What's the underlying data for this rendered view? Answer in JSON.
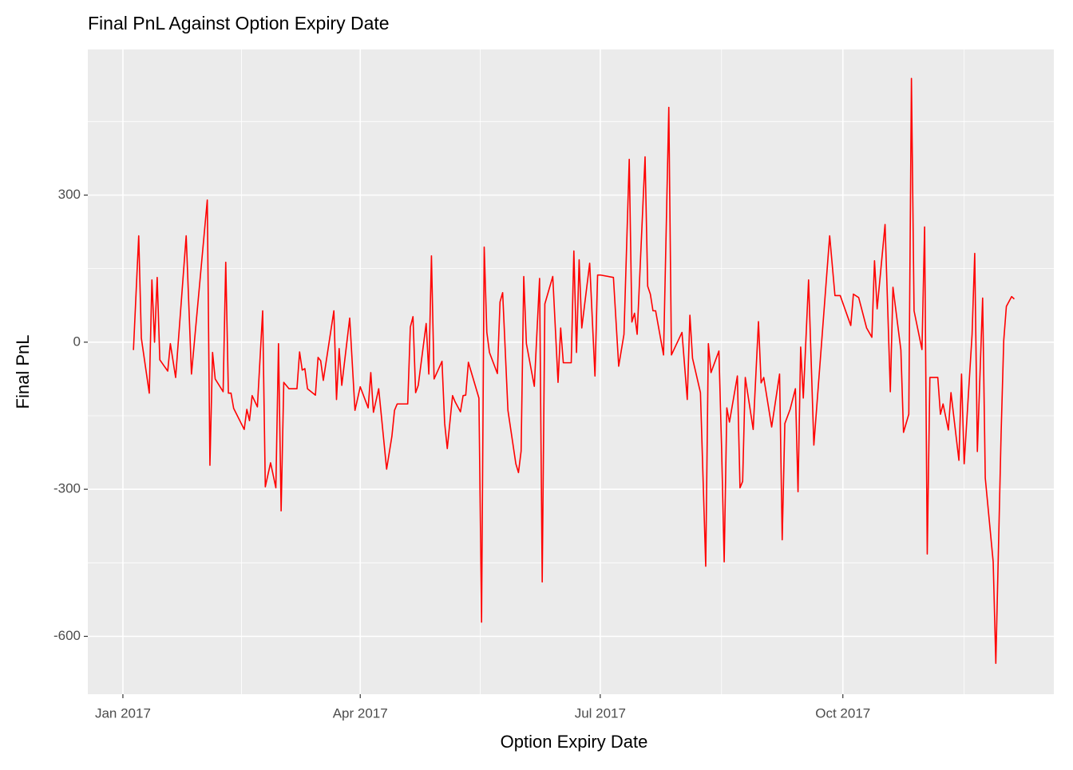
{
  "chart_data": {
    "type": "line",
    "title": "Final PnL Against Option Expiry Date",
    "x_label": "Option Expiry Date",
    "y_label": "Final PnL",
    "color": "#ff0000",
    "grid": true,
    "xlim": [
      -13.3,
      353
    ],
    "ylim": [
      -718,
      597
    ],
    "xticks": [
      {
        "value": 0,
        "label": "Jan 2017"
      },
      {
        "value": 90,
        "label": "Apr 2017"
      },
      {
        "value": 181,
        "label": "Jul 2017"
      },
      {
        "value": 273,
        "label": "Oct 2017"
      }
    ],
    "yticks": [
      -600,
      -300,
      0,
      300
    ],
    "x": [
      4,
      6,
      7,
      10,
      11,
      12,
      13,
      14,
      17,
      18,
      20,
      24,
      26,
      32,
      33,
      34,
      35,
      38,
      39,
      40,
      41,
      42,
      46,
      47,
      48,
      49,
      51,
      53,
      54,
      56,
      58,
      59,
      60,
      61,
      63,
      66,
      67,
      68,
      69,
      70,
      73,
      74,
      75,
      76,
      80,
      81,
      82,
      83,
      86,
      88,
      90,
      93,
      94,
      95,
      97,
      100,
      102,
      103,
      104,
      108,
      109,
      110,
      111,
      112,
      115,
      116,
      117,
      118,
      121,
      122,
      123,
      125,
      126,
      128,
      129,
      130,
      131,
      135,
      136,
      137,
      138,
      139,
      142,
      143,
      144,
      146,
      149,
      150,
      151,
      152,
      153,
      156,
      158,
      159,
      160,
      163,
      165,
      166,
      167,
      170,
      171,
      172,
      173,
      174,
      177,
      179,
      180,
      181,
      186,
      188,
      190,
      192,
      193,
      194,
      195,
      198,
      199,
      200,
      201,
      202,
      205,
      207,
      208,
      212,
      214,
      215,
      216,
      219,
      221,
      222,
      223,
      226,
      227,
      228,
      229,
      230,
      233,
      234,
      235,
      236,
      239,
      241,
      242,
      243,
      246,
      249,
      250,
      251,
      253,
      255,
      256,
      257,
      258,
      260,
      262,
      268,
      270,
      272,
      276,
      277,
      279,
      282,
      284,
      285,
      286,
      289,
      291,
      292,
      295,
      296,
      298,
      299,
      300,
      303,
      304,
      305,
      306,
      309,
      310,
      311,
      313,
      314,
      317,
      318,
      319,
      322,
      323,
      324,
      326,
      327,
      330,
      331,
      333,
      334,
      335,
      337,
      338
    ],
    "values": [
      -16,
      217,
      8,
      -104,
      127,
      0,
      132,
      -36,
      -59,
      -3,
      -72,
      217,
      -65,
      290,
      -251,
      -21,
      -75,
      -101,
      163,
      -104,
      -104,
      -135,
      -178,
      -137,
      -160,
      -109,
      -132,
      64,
      -295,
      -246,
      -297,
      -3,
      -344,
      -82,
      -95,
      -95,
      -20,
      -57,
      -54,
      -95,
      -108,
      -31,
      -38,
      -78,
      64,
      -117,
      -13,
      -88,
      49,
      -139,
      -91,
      -134,
      -62,
      -143,
      -95,
      -259,
      -192,
      -139,
      -126,
      -126,
      31,
      52,
      -103,
      -88,
      38,
      -65,
      176,
      -75,
      -39,
      -165,
      -217,
      -109,
      -122,
      -142,
      -109,
      -108,
      -41,
      -114,
      -571,
      194,
      20,
      -21,
      -64,
      82,
      101,
      -139,
      -248,
      -266,
      -222,
      134,
      -3,
      -90,
      130,
      -489,
      78,
      134,
      -82,
      29,
      -42,
      -42,
      186,
      -21,
      168,
      29,
      161,
      -69,
      137,
      137,
      132,
      -49,
      16,
      373,
      41,
      59,
      16,
      378,
      114,
      98,
      64,
      64,
      -26,
      479,
      -26,
      20,
      -117,
      55,
      -33,
      -103,
      -457,
      -3,
      -62,
      -18,
      -212,
      -448,
      -134,
      -163,
      -69,
      -297,
      -284,
      -72,
      -178,
      42,
      -83,
      -72,
      -173,
      -65,
      -403,
      -166,
      -137,
      -95,
      -305,
      -10,
      -114,
      127,
      -210,
      217,
      95,
      95,
      34,
      98,
      91,
      29,
      10,
      166,
      68,
      240,
      -101,
      112,
      -16,
      -184,
      -147,
      538,
      64,
      -15,
      235,
      -432,
      -72,
      -72,
      -147,
      -126,
      -179,
      -103,
      -241,
      -65,
      -248,
      16,
      181,
      -223,
      90,
      -277,
      -448,
      -655,
      -188,
      3,
      73,
      93,
      88
    ]
  }
}
